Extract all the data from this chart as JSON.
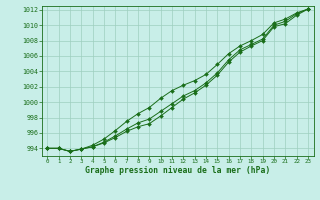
{
  "x": [
    0,
    1,
    2,
    3,
    4,
    5,
    6,
    7,
    8,
    9,
    10,
    11,
    12,
    13,
    14,
    15,
    16,
    17,
    18,
    19,
    20,
    21,
    22,
    23
  ],
  "line1": [
    994.0,
    994.0,
    993.6,
    993.9,
    994.2,
    994.7,
    995.4,
    996.2,
    996.8,
    997.2,
    998.2,
    999.3,
    1000.4,
    1001.2,
    1002.2,
    1003.5,
    1005.2,
    1006.5,
    1007.3,
    1008.0,
    1009.8,
    1010.2,
    1011.3,
    1012.1
  ],
  "line2": [
    994.0,
    994.0,
    993.6,
    993.9,
    994.2,
    994.8,
    995.6,
    996.5,
    997.3,
    997.8,
    998.8,
    999.8,
    1000.8,
    1001.5,
    1002.5,
    1003.8,
    1005.5,
    1006.8,
    1007.5,
    1008.2,
    1010.0,
    1010.5,
    1011.5,
    1012.1
  ],
  "line3": [
    994.0,
    994.0,
    993.6,
    993.9,
    994.4,
    995.2,
    996.3,
    997.5,
    998.5,
    999.3,
    1000.5,
    1001.5,
    1002.2,
    1002.8,
    1003.6,
    1004.9,
    1006.3,
    1007.3,
    1008.0,
    1008.8,
    1010.3,
    1010.8,
    1011.6,
    1012.1
  ],
  "line_color": "#1a6e1a",
  "bg_color": "#c8eee8",
  "grid_color": "#9ecfbf",
  "xlabel": "Graphe pression niveau de la mer (hPa)",
  "ylim": [
    993.0,
    1012.5
  ],
  "yticks": [
    994,
    996,
    998,
    1000,
    1002,
    1004,
    1006,
    1008,
    1010,
    1012
  ],
  "xlim": [
    -0.5,
    23.5
  ],
  "xticks": [
    0,
    1,
    2,
    3,
    4,
    5,
    6,
    7,
    8,
    9,
    10,
    11,
    12,
    13,
    14,
    15,
    16,
    17,
    18,
    19,
    20,
    21,
    22,
    23
  ]
}
